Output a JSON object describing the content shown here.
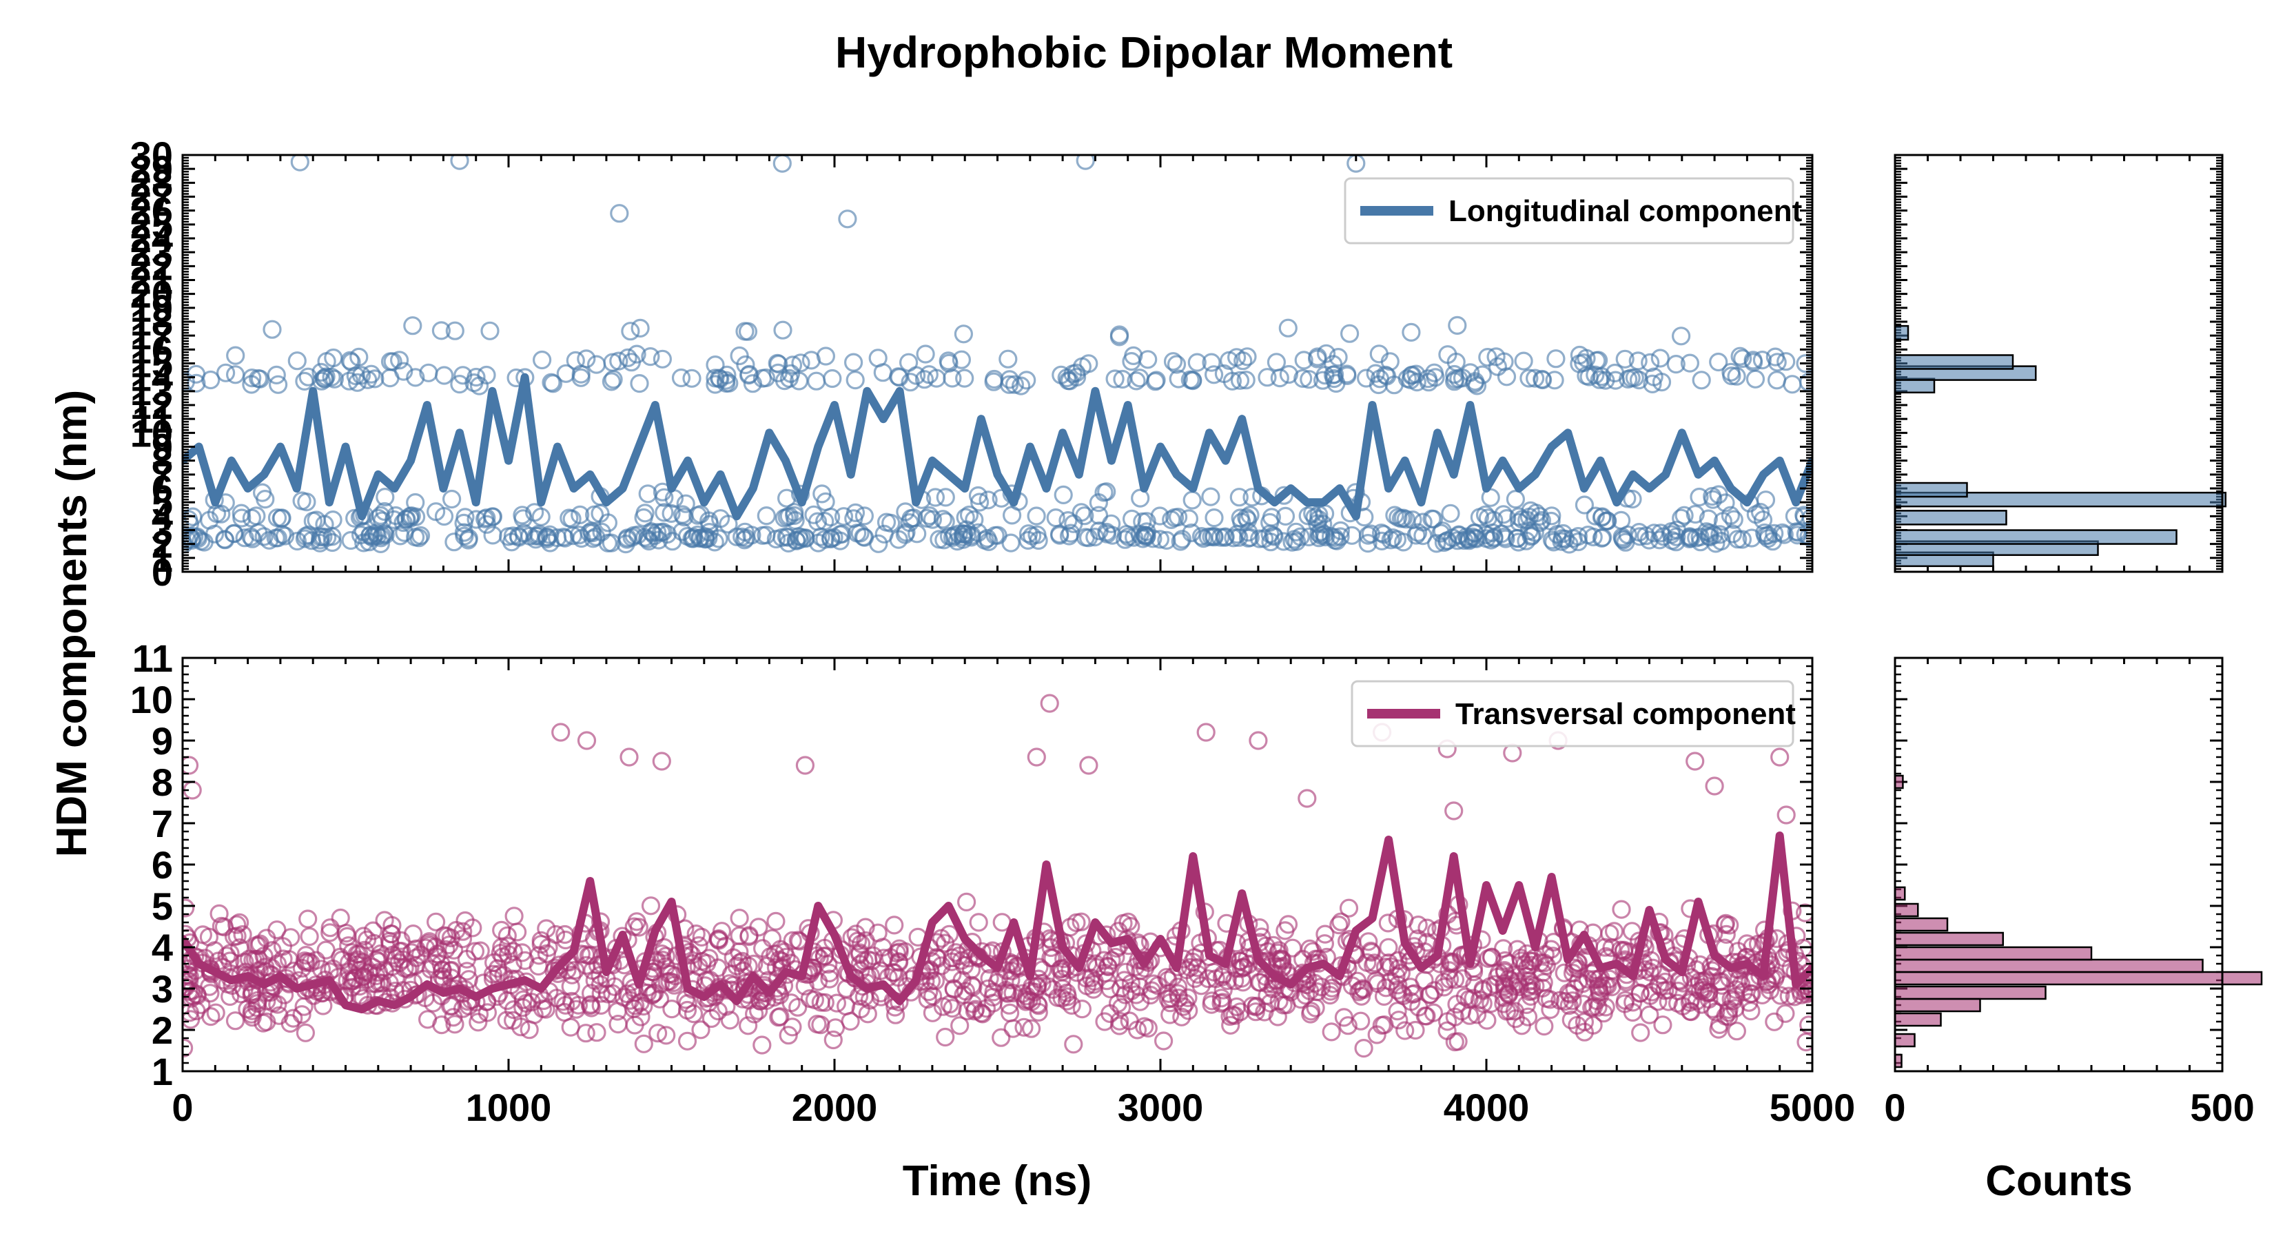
{
  "chart_data": {
    "type": "line",
    "title": "Hydrophobic Dipolar Moment",
    "ylabel": "HDM components (nm)",
    "xlabel": "Time (ns)",
    "hist_xlabel": "Counts",
    "x_ticks": [
      "0",
      "1000",
      "2000",
      "3000",
      "4000",
      "5000"
    ],
    "hist_x_ticks": [
      "0",
      "500"
    ],
    "xlim": [
      0,
      5000
    ],
    "hist_xlim": [
      0,
      500
    ],
    "colors": {
      "longitudinal": "#4778a8",
      "transversal": "#a63271"
    },
    "panels": [
      {
        "name": "top",
        "legend": "Longitudinal component",
        "ylim": [
          0,
          30
        ],
        "y_ticks": [
          "0",
          "1",
          "2",
          "3",
          "4",
          "5",
          "6",
          "7",
          "8",
          "9",
          "10",
          "11",
          "12",
          "13",
          "14",
          "15",
          "16",
          "17",
          "18",
          "19",
          "20",
          "21",
          "22",
          "23",
          "24",
          "25",
          "26",
          "27",
          "28",
          "29",
          "30"
        ],
        "scatter_clusters": [
          {
            "y": 2.5,
            "share": 0.42
          },
          {
            "y": 3.9,
            "share": 0.2
          },
          {
            "y": 5.3,
            "share": 0.06
          },
          {
            "y": 13.9,
            "share": 0.2
          },
          {
            "y": 15.2,
            "share": 0.1
          },
          {
            "y": 17.3,
            "share": 0.02
          }
        ],
        "scatter_outliers": [
          {
            "x": 360,
            "y": 29.5
          },
          {
            "x": 850,
            "y": 29.6
          },
          {
            "x": 1840,
            "y": 29.4
          },
          {
            "x": 2770,
            "y": 29.6
          },
          {
            "x": 3600,
            "y": 29.4
          },
          {
            "x": 1340,
            "y": 25.8
          },
          {
            "x": 2040,
            "y": 25.4
          }
        ],
        "series": {
          "name": "Longitudinal component (running average)",
          "x": [
            0,
            50,
            100,
            150,
            200,
            250,
            300,
            350,
            400,
            450,
            500,
            550,
            600,
            650,
            700,
            750,
            800,
            850,
            900,
            950,
            1000,
            1050,
            1100,
            1150,
            1200,
            1250,
            1300,
            1350,
            1400,
            1450,
            1500,
            1550,
            1600,
            1650,
            1700,
            1750,
            1800,
            1850,
            1900,
            1950,
            2000,
            2050,
            2100,
            2150,
            2200,
            2250,
            2300,
            2350,
            2400,
            2450,
            2500,
            2550,
            2600,
            2650,
            2700,
            2750,
            2800,
            2850,
            2900,
            2950,
            3000,
            3050,
            3100,
            3150,
            3200,
            3250,
            3300,
            3350,
            3400,
            3450,
            3500,
            3550,
            3600,
            3650,
            3700,
            3750,
            3800,
            3850,
            3900,
            3950,
            4000,
            4050,
            4100,
            4150,
            4200,
            4250,
            4300,
            4350,
            4400,
            4450,
            4500,
            4550,
            4600,
            4650,
            4700,
            4750,
            4800,
            4850,
            4900,
            4950,
            5000
          ],
          "values": [
            8,
            9,
            5,
            8,
            6,
            7,
            9,
            6,
            13,
            5,
            9,
            4,
            7,
            6,
            8,
            12,
            6,
            10,
            5,
            13,
            8,
            14,
            5,
            9,
            6,
            7,
            5,
            6,
            9,
            12,
            6,
            8,
            5,
            7,
            4,
            6,
            10,
            8,
            5,
            9,
            12,
            7,
            13,
            11,
            13,
            5,
            8,
            7,
            6,
            11,
            7,
            5,
            9,
            6,
            10,
            7,
            13,
            8,
            12,
            6,
            9,
            7,
            6,
            10,
            8,
            11,
            6,
            5,
            6,
            5,
            5,
            6,
            4,
            12,
            6,
            8,
            5,
            10,
            7,
            12,
            6,
            8,
            6,
            7,
            9,
            10,
            6,
            8,
            5,
            7,
            6,
            7,
            10,
            7,
            8,
            6,
            5,
            7,
            8,
            5,
            8
          ]
        },
        "histogram": {
          "bins": [
            {
              "y": 0.9,
              "count": 150
            },
            {
              "y": 1.7,
              "count": 310
            },
            {
              "y": 2.5,
              "count": 430
            },
            {
              "y": 3.9,
              "count": 170
            },
            {
              "y": 5.2,
              "count": 505
            },
            {
              "y": 5.9,
              "count": 110
            },
            {
              "y": 13.4,
              "count": 60
            },
            {
              "y": 14.3,
              "count": 215
            },
            {
              "y": 15.1,
              "count": 180
            },
            {
              "y": 17.2,
              "count": 20
            }
          ]
        }
      },
      {
        "name": "bottom",
        "legend": "Transversal component",
        "ylim": [
          1,
          11
        ],
        "y_ticks": [
          "1",
          "2",
          "3",
          "4",
          "5",
          "6",
          "7",
          "8",
          "9",
          "10",
          "11"
        ],
        "scatter_band": {
          "center": 3.3,
          "spread": 1.0
        },
        "scatter_outliers": [
          {
            "x": 20,
            "y": 8.4
          },
          {
            "x": 30,
            "y": 7.8
          },
          {
            "x": 1160,
            "y": 9.2
          },
          {
            "x": 1240,
            "y": 9.0
          },
          {
            "x": 1370,
            "y": 8.6
          },
          {
            "x": 1470,
            "y": 8.5
          },
          {
            "x": 1910,
            "y": 8.4
          },
          {
            "x": 2620,
            "y": 8.6
          },
          {
            "x": 2660,
            "y": 9.9
          },
          {
            "x": 2780,
            "y": 8.4
          },
          {
            "x": 3140,
            "y": 9.2
          },
          {
            "x": 3300,
            "y": 9.0
          },
          {
            "x": 3680,
            "y": 9.2
          },
          {
            "x": 3880,
            "y": 8.8
          },
          {
            "x": 4080,
            "y": 8.7
          },
          {
            "x": 4220,
            "y": 9.0
          },
          {
            "x": 4640,
            "y": 8.5
          },
          {
            "x": 4900,
            "y": 8.6
          },
          {
            "x": 4920,
            "y": 7.2
          },
          {
            "x": 3450,
            "y": 7.6
          },
          {
            "x": 4700,
            "y": 7.9
          },
          {
            "x": 3900,
            "y": 7.3
          }
        ],
        "series": {
          "name": "Transversal component (running average)",
          "x": [
            0,
            50,
            100,
            150,
            200,
            250,
            300,
            350,
            400,
            450,
            500,
            550,
            600,
            650,
            700,
            750,
            800,
            850,
            900,
            950,
            1000,
            1050,
            1100,
            1150,
            1200,
            1250,
            1300,
            1350,
            1400,
            1450,
            1500,
            1550,
            1600,
            1650,
            1700,
            1750,
            1800,
            1850,
            1900,
            1950,
            2000,
            2050,
            2100,
            2150,
            2200,
            2250,
            2300,
            2350,
            2400,
            2450,
            2500,
            2550,
            2600,
            2650,
            2700,
            2750,
            2800,
            2850,
            2900,
            2950,
            3000,
            3050,
            3100,
            3150,
            3200,
            3250,
            3300,
            3350,
            3400,
            3450,
            3500,
            3550,
            3600,
            3650,
            3700,
            3750,
            3800,
            3850,
            3900,
            3950,
            4000,
            4050,
            4100,
            4150,
            4200,
            4250,
            4300,
            4350,
            4400,
            4450,
            4500,
            4550,
            4600,
            4650,
            4700,
            4750,
            4800,
            4850,
            4900,
            4950,
            5000
          ],
          "values": [
            4.2,
            3.6,
            3.4,
            3.2,
            3.3,
            3.1,
            3.3,
            3.0,
            3.1,
            3.2,
            2.6,
            2.5,
            2.7,
            2.6,
            2.8,
            3.1,
            2.9,
            3.0,
            2.8,
            3.0,
            3.1,
            3.2,
            3.0,
            3.5,
            3.9,
            5.6,
            3.4,
            4.3,
            3.1,
            4.4,
            5.1,
            3.0,
            2.8,
            3.1,
            2.7,
            3.3,
            2.9,
            3.4,
            3.3,
            5.0,
            4.3,
            3.3,
            3.0,
            3.1,
            2.7,
            3.2,
            4.6,
            5.0,
            4.2,
            3.8,
            3.5,
            4.6,
            3.3,
            6.0,
            4.0,
            3.5,
            4.6,
            4.1,
            4.2,
            3.6,
            4.2,
            3.5,
            6.2,
            3.8,
            3.6,
            5.3,
            3.7,
            3.3,
            3.1,
            3.5,
            3.6,
            3.3,
            4.4,
            4.7,
            6.6,
            4.1,
            3.5,
            3.8,
            6.2,
            3.6,
            5.5,
            4.4,
            5.5,
            4.0,
            5.7,
            3.7,
            4.3,
            3.5,
            3.6,
            3.3,
            4.9,
            3.7,
            3.4,
            5.1,
            3.8,
            3.5,
            3.6,
            3.3,
            6.7,
            3.1,
            3.5
          ]
        },
        "histogram": {
          "bins": [
            {
              "y": 1.25,
              "count": 10
            },
            {
              "y": 1.75,
              "count": 30
            },
            {
              "y": 2.25,
              "count": 70
            },
            {
              "y": 2.6,
              "count": 130
            },
            {
              "y": 2.9,
              "count": 230
            },
            {
              "y": 3.25,
              "count": 560
            },
            {
              "y": 3.55,
              "count": 470
            },
            {
              "y": 3.85,
              "count": 300
            },
            {
              "y": 4.2,
              "count": 165
            },
            {
              "y": 4.55,
              "count": 80
            },
            {
              "y": 4.9,
              "count": 35
            },
            {
              "y": 5.3,
              "count": 15
            },
            {
              "y": 8.0,
              "count": 12
            }
          ]
        }
      }
    ]
  }
}
